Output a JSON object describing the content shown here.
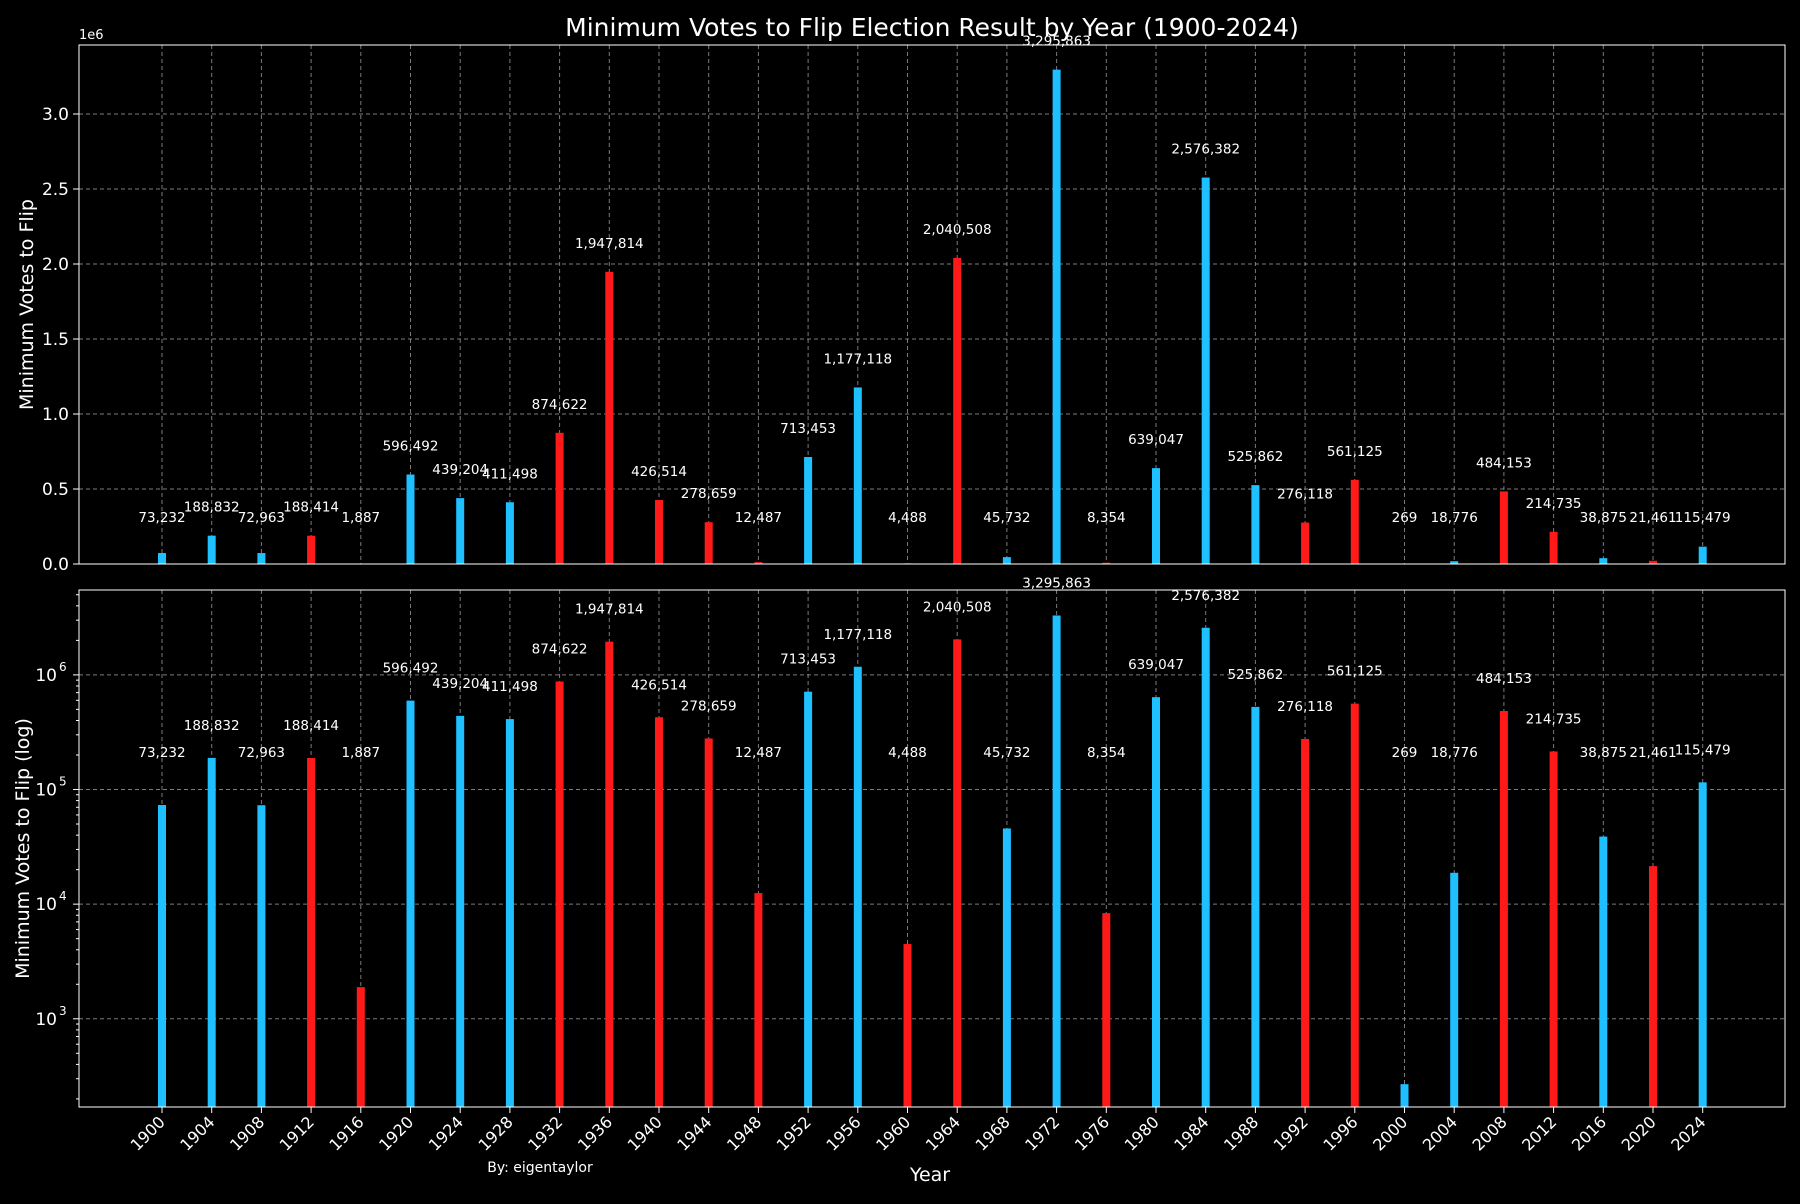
{
  "chart_data": {
    "type": "bar",
    "title": "Minimum Votes to Flip Election Result by Year (1900-2024)",
    "xlabel": "Year",
    "credit": "By: eigentaylor",
    "colors": {
      "blue": "#1EC0FF",
      "red": "#FF1A1A",
      "background": "#000000",
      "text": "#FFFFFF",
      "grid": "#9a9a9a"
    },
    "categories": [
      "1900",
      "1904",
      "1908",
      "1912",
      "1916",
      "1920",
      "1924",
      "1928",
      "1932",
      "1936",
      "1940",
      "1944",
      "1948",
      "1952",
      "1956",
      "1960",
      "1964",
      "1968",
      "1972",
      "1976",
      "1980",
      "1984",
      "1988",
      "1992",
      "1996",
      "2000",
      "2004",
      "2008",
      "2012",
      "2016",
      "2020",
      "2024"
    ],
    "values": [
      73232,
      188832,
      72963,
      188414,
      1887,
      596492,
      439204,
      411498,
      874622,
      1947814,
      426514,
      278659,
      12487,
      713453,
      1177118,
      4488,
      2040508,
      45732,
      3295863,
      8354,
      639047,
      2576382,
      525862,
      276118,
      561125,
      269,
      18776,
      484153,
      214735,
      38875,
      21461,
      115479
    ],
    "labels": [
      "73,232",
      "188,832",
      "72,963",
      "188,414",
      "1,887",
      "596,492",
      "439,204",
      "411,498",
      "874,622",
      "1,947,814",
      "426,514",
      "278,659",
      "12,487",
      "713,453",
      "1,177,118",
      "4,488",
      "2,040,508",
      "45,732",
      "3,295,863",
      "8,354",
      "639,047",
      "2,576,382",
      "525,862",
      "276,118",
      "561,125",
      "269",
      "18,776",
      "484,153",
      "214,735",
      "38,875",
      "21,461",
      "115,479"
    ],
    "party": [
      "blue",
      "blue",
      "blue",
      "red",
      "red",
      "blue",
      "blue",
      "blue",
      "red",
      "red",
      "red",
      "red",
      "red",
      "blue",
      "blue",
      "red",
      "red",
      "blue",
      "blue",
      "red",
      "blue",
      "blue",
      "blue",
      "red",
      "red",
      "blue",
      "blue",
      "red",
      "red",
      "blue",
      "red",
      "blue"
    ],
    "panels": [
      {
        "scale": "linear",
        "ylabel": "Minimum Votes to Flip",
        "ylim": [
          0,
          3460000
        ],
        "offset_label": "1e6",
        "yticks": [
          0,
          500000,
          1000000,
          1500000,
          2000000,
          2500000,
          3000000
        ],
        "yticklabels": [
          "0.0",
          "0.5",
          "1.0",
          "1.5",
          "2.0",
          "2.5",
          "3.0"
        ]
      },
      {
        "scale": "log",
        "ylabel": "Minimum Votes to Flip (log)",
        "ylim": [
          170,
          5500000
        ],
        "yticks": [
          1000,
          10000,
          100000,
          1000000
        ],
        "yticklabels": [
          "10",
          "10",
          "10",
          "10"
        ],
        "ytick_exponents": [
          "3",
          "4",
          "5",
          "6"
        ]
      }
    ]
  }
}
